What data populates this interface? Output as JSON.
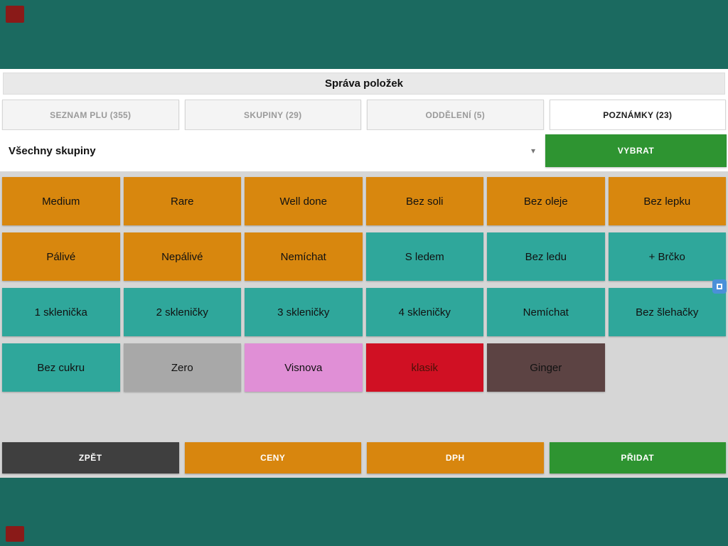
{
  "app": {
    "title": "Správa položek"
  },
  "tabs": [
    {
      "label": "SEZNAM PLU (355)"
    },
    {
      "label": "SKUPINY (29)"
    },
    {
      "label": "ODDĚLENÍ (5)"
    },
    {
      "label": "POZNÁMKY (23)"
    }
  ],
  "filter": {
    "selected_group": "Všechny skupiny",
    "caret": "▾",
    "select_button": "VYBRAT"
  },
  "notes": [
    {
      "label": "Medium",
      "color": "#D8870E"
    },
    {
      "label": "Rare",
      "color": "#D8870E"
    },
    {
      "label": "Well done",
      "color": "#D8870E"
    },
    {
      "label": "Bez soli",
      "color": "#D8870E"
    },
    {
      "label": "Bez oleje",
      "color": "#D8870E"
    },
    {
      "label": "Bez lepku",
      "color": "#D8870E"
    },
    {
      "label": "Pálivé",
      "color": "#D8870E"
    },
    {
      "label": "Nepálivé",
      "color": "#D8870E"
    },
    {
      "label": "Nemíchat",
      "color": "#D8870E"
    },
    {
      "label": "S ledem",
      "color": "#2FA79B"
    },
    {
      "label": "Bez ledu",
      "color": "#2FA79B"
    },
    {
      "label": "+ Brčko",
      "color": "#2FA79B"
    },
    {
      "label": "1 sklenička",
      "color": "#2FA79B"
    },
    {
      "label": "2 skleničky",
      "color": "#2FA79B"
    },
    {
      "label": "3 skleničky",
      "color": "#2FA79B"
    },
    {
      "label": "4 skleničky",
      "color": "#2FA79B"
    },
    {
      "label": "Nemíchat",
      "color": "#2FA79B"
    },
    {
      "label": "Bez šlehačky",
      "color": "#2FA79B"
    },
    {
      "label": "Bez cukru",
      "color": "#2FA79B"
    },
    {
      "label": "Zero",
      "color": "#A8A8A8"
    },
    {
      "label": "Visnova",
      "color": "#E08FD6"
    },
    {
      "label": "klasik",
      "color": "#D01023",
      "text_color": "#4A1208"
    },
    {
      "label": "Ginger",
      "color": "#5C4343"
    }
  ],
  "footer": {
    "back": "ZPĚT",
    "prices": "CENY",
    "vat": "DPH",
    "add": "PŘIDAT"
  },
  "colors": {
    "background_teal": "#1B6A60",
    "grid_background": "#d6d6d6",
    "orange": "#D8870E",
    "teal": "#2FA79B",
    "green": "#2E9431",
    "dark_gray": "#3F3F3F",
    "red": "#D01023",
    "pink": "#E08FD6",
    "brown": "#5C4343",
    "gray": "#A8A8A8"
  }
}
